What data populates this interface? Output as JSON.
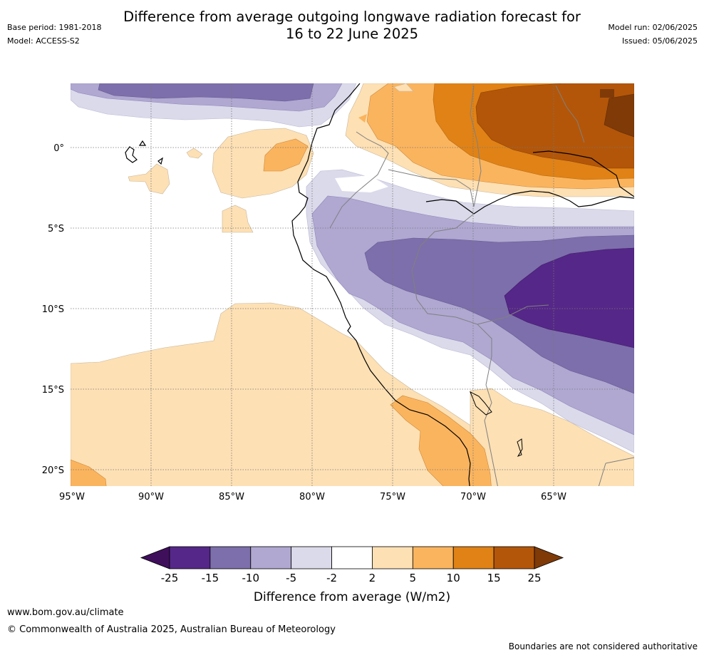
{
  "title_line1": "Difference from average outgoing longwave radiation forecast for",
  "title_line2": "16 to 22 June 2025",
  "base_period": "Base period: 1981-2018",
  "model": "Model: ACCESS-S2",
  "model_run": "Model run: 02/06/2025",
  "issued": "Issued: 05/06/2025",
  "lat_labels": [
    "0°",
    "5°S",
    "10°S",
    "15°S",
    "20°S"
  ],
  "lon_labels": [
    "95°W",
    "90°W",
    "85°W",
    "80°W",
    "75°W",
    "70°W",
    "65°W"
  ],
  "colorbar": {
    "ticks": [
      "-25",
      "-15",
      "-10",
      "-5",
      "-2",
      "2",
      "5",
      "10",
      "15",
      "25"
    ],
    "colors": [
      "#3f0f5c",
      "#552788",
      "#7d6fab",
      "#b0a8d1",
      "#dbdaeb",
      "#ffffff",
      "#fde0b4",
      "#fbb45e",
      "#e08216",
      "#b35609",
      "#7f3a08"
    ],
    "label": "Difference from average (W/m2)"
  },
  "footer_url": "www.bom.gov.au/climate",
  "footer_copyright": "© Commonwealth of Australia 2025, Australian Bureau of Meteorology",
  "footer_disclaimer": "Boundaries are not considered authoritative"
}
